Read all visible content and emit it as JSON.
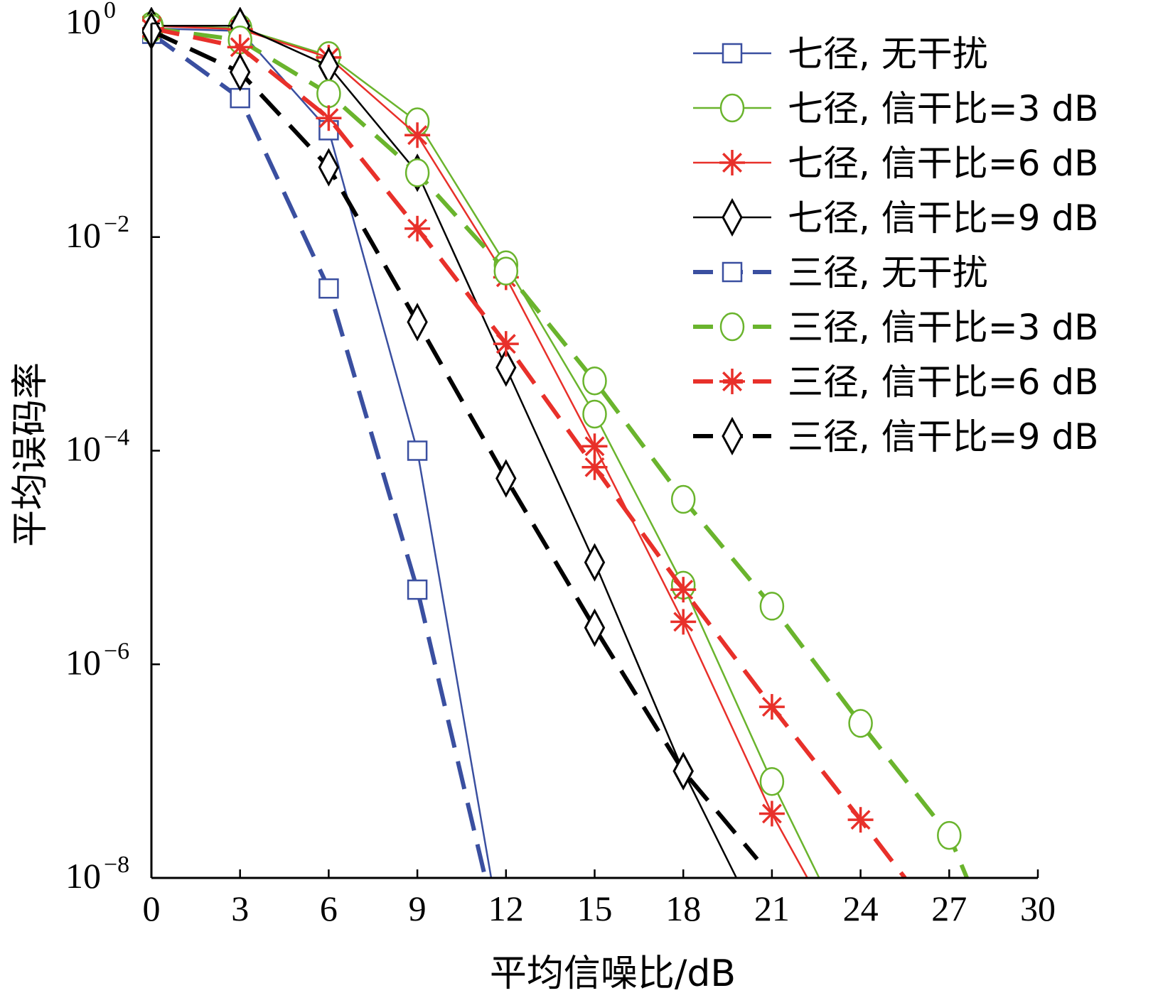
{
  "chart_data": {
    "type": "line",
    "title": "",
    "xlabel": "平均信噪比/dB",
    "ylabel": "平均误码率",
    "x_scale": "linear",
    "y_scale": "log",
    "xlim": [
      0,
      30
    ],
    "ylim": [
      1e-08,
      1
    ],
    "grid": false,
    "legend_position": "top-right",
    "x_ticks": [
      {
        "value": 0,
        "label": "0"
      },
      {
        "value": 3,
        "label": "3"
      },
      {
        "value": 6,
        "label": "6"
      },
      {
        "value": 9,
        "label": "9"
      },
      {
        "value": 12,
        "label": "12"
      },
      {
        "value": 15,
        "label": "15"
      },
      {
        "value": 18,
        "label": "18"
      },
      {
        "value": 21,
        "label": "21"
      },
      {
        "value": 24,
        "label": "24"
      },
      {
        "value": 27,
        "label": "27"
      },
      {
        "value": 30,
        "label": "30"
      }
    ],
    "y_ticks": [
      {
        "value": 1,
        "base": "10",
        "exp": "0"
      },
      {
        "value": 0.01,
        "base": "10",
        "exp": "−2"
      },
      {
        "value": 0.0001,
        "base": "10",
        "exp": "−4"
      },
      {
        "value": 1e-06,
        "base": "10",
        "exp": "−6"
      },
      {
        "value": 1e-08,
        "base": "10",
        "exp": "−8"
      }
    ],
    "series": [
      {
        "name": "七径, 无干扰",
        "color": "#3a4fa0",
        "marker": "square",
        "dashed": false,
        "stroke_width": 2.5,
        "line": [
          [
            0,
            0.9
          ],
          [
            3,
            0.85
          ],
          [
            6,
            0.1
          ],
          [
            9,
            0.0001
          ],
          [
            11.5,
            1e-08
          ]
        ],
        "markers": [
          [
            0,
            0.9
          ],
          [
            3,
            0.85
          ],
          [
            6,
            0.1
          ],
          [
            9,
            0.0001
          ]
        ]
      },
      {
        "name": "七径, 信干比=3 dB",
        "color": "#6ab42d",
        "marker": "circle",
        "dashed": false,
        "stroke_width": 2.5,
        "line": [
          [
            0,
            0.95
          ],
          [
            3,
            0.9
          ],
          [
            6,
            0.5
          ],
          [
            9,
            0.12
          ],
          [
            12,
            0.0055
          ],
          [
            15,
            0.00022
          ],
          [
            18,
            5.5e-06
          ],
          [
            21,
            8e-08
          ],
          [
            22.6,
            1e-08
          ]
        ],
        "markers": [
          [
            0,
            0.95
          ],
          [
            3,
            0.9
          ],
          [
            6,
            0.5
          ],
          [
            9,
            0.12
          ],
          [
            12,
            0.0055
          ],
          [
            15,
            0.00022
          ],
          [
            18,
            5.5e-06
          ],
          [
            21,
            8e-08
          ]
        ]
      },
      {
        "name": "七径, 信干比=6 dB",
        "color": "#e8302a",
        "marker": "star",
        "dashed": false,
        "stroke_width": 2.5,
        "line": [
          [
            0,
            0.95
          ],
          [
            3,
            0.88
          ],
          [
            6,
            0.48
          ],
          [
            9,
            0.09
          ],
          [
            12,
            0.0042
          ],
          [
            15,
            0.00011
          ],
          [
            18,
            2.5e-06
          ],
          [
            21,
            4e-08
          ],
          [
            22.2,
            1e-08
          ]
        ],
        "markers": [
          [
            0,
            0.95
          ],
          [
            3,
            0.88
          ],
          [
            6,
            0.48
          ],
          [
            9,
            0.09
          ],
          [
            12,
            0.0042
          ],
          [
            15,
            0.00011
          ],
          [
            18,
            2.5e-06
          ],
          [
            21,
            4e-08
          ]
        ]
      },
      {
        "name": "七径, 信干比=9 dB",
        "color": "#000000",
        "marker": "diamond",
        "dashed": false,
        "stroke_width": 2.5,
        "line": [
          [
            0,
            0.95
          ],
          [
            3,
            0.95
          ],
          [
            6,
            0.4
          ],
          [
            9,
            0.04
          ],
          [
            12,
            0.0006
          ],
          [
            15,
            9e-06
          ],
          [
            18,
            1e-07
          ],
          [
            19.8,
            1e-08
          ]
        ],
        "markers": [
          [
            0,
            0.95
          ],
          [
            3,
            0.95
          ],
          [
            6,
            0.4
          ],
          [
            9,
            0.04
          ],
          [
            12,
            0.0006
          ],
          [
            15,
            9e-06
          ],
          [
            18,
            1e-07
          ]
        ]
      },
      {
        "name": "三径, 无干扰",
        "color": "#3a4fa0",
        "marker": "square",
        "dashed": true,
        "stroke_width": 6,
        "line": [
          [
            0,
            0.8
          ],
          [
            3,
            0.2
          ],
          [
            6,
            0.0033
          ],
          [
            9,
            5e-06
          ],
          [
            11.3,
            1e-08
          ]
        ],
        "markers": [
          [
            0,
            0.8
          ],
          [
            3,
            0.2
          ],
          [
            6,
            0.0033
          ],
          [
            9,
            5e-06
          ]
        ]
      },
      {
        "name": "三径, 信干比=3 dB",
        "color": "#6ab42d",
        "marker": "circle",
        "dashed": true,
        "stroke_width": 6,
        "line": [
          [
            0,
            0.9
          ],
          [
            3,
            0.7
          ],
          [
            6,
            0.22
          ],
          [
            9,
            0.04
          ],
          [
            12,
            0.0048
          ],
          [
            15,
            0.00045
          ],
          [
            18,
            3.5e-05
          ],
          [
            21,
            3.5e-06
          ],
          [
            24,
            2.8e-07
          ],
          [
            27,
            2.5e-08
          ],
          [
            27.6,
            1e-08
          ]
        ],
        "markers": [
          [
            0,
            0.9
          ],
          [
            3,
            0.7
          ],
          [
            6,
            0.22
          ],
          [
            9,
            0.04
          ],
          [
            12,
            0.0048
          ],
          [
            15,
            0.00045
          ],
          [
            18,
            3.5e-05
          ],
          [
            21,
            3.5e-06
          ],
          [
            24,
            2.8e-07
          ],
          [
            27,
            2.5e-08
          ]
        ]
      },
      {
        "name": "三径, 信干比=6 dB",
        "color": "#e8302a",
        "marker": "star",
        "dashed": true,
        "stroke_width": 6,
        "line": [
          [
            0,
            0.9
          ],
          [
            3,
            0.6
          ],
          [
            6,
            0.13
          ],
          [
            9,
            0.012
          ],
          [
            12,
            0.001
          ],
          [
            15,
            7e-05
          ],
          [
            18,
            5e-06
          ],
          [
            21,
            4e-07
          ],
          [
            24,
            3.5e-08
          ],
          [
            25.5,
            1e-08
          ]
        ],
        "markers": [
          [
            0,
            0.9
          ],
          [
            3,
            0.6
          ],
          [
            6,
            0.13
          ],
          [
            9,
            0.012
          ],
          [
            12,
            0.001
          ],
          [
            15,
            7e-05
          ],
          [
            18,
            5e-06
          ],
          [
            21,
            4e-07
          ],
          [
            24,
            3.5e-08
          ]
        ]
      },
      {
        "name": "三径, 信干比=9 dB",
        "color": "#000000",
        "marker": "diamond",
        "dashed": true,
        "stroke_width": 6,
        "line": [
          [
            0,
            0.85
          ],
          [
            3,
            0.35
          ],
          [
            6,
            0.045
          ],
          [
            9,
            0.0016
          ],
          [
            12,
            5.5e-05
          ],
          [
            15,
            2.2e-06
          ],
          [
            18,
            1e-07
          ],
          [
            20.5,
            1.5e-08
          ]
        ],
        "markers": [
          [
            0,
            0.85
          ],
          [
            3,
            0.35
          ],
          [
            6,
            0.045
          ],
          [
            9,
            0.0016
          ],
          [
            12,
            5.5e-05
          ],
          [
            15,
            2.2e-06
          ],
          [
            18,
            1e-07
          ]
        ]
      }
    ]
  }
}
